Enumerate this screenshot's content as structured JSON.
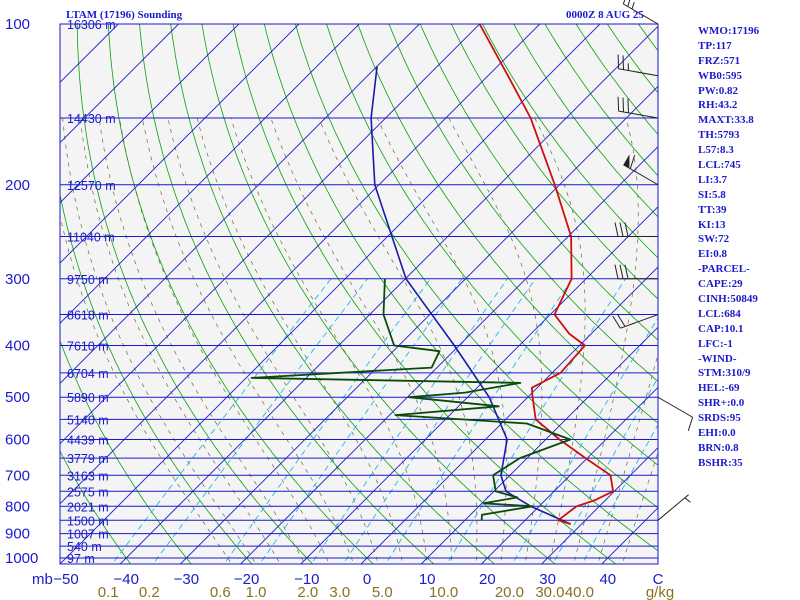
{
  "title": "LTAM (17196) Sounding",
  "time": "0000Z  8 AUG 25",
  "indices": [
    "WMO:17196",
    "TP:117",
    "FRZ:571",
    "WB0:595",
    "PW:0.82",
    "RH:43.2",
    "MAXT:33.8",
    "TH:5793",
    "L57:8.3",
    "LCL:745",
    "LI:3.7",
    "SI:5.8",
    "TT:39",
    "KI:13",
    "SW:72",
    "EI:0.8",
    "-PARCEL-",
    "CAPE:29",
    "CINH:50849",
    "LCL:684",
    "CAP:10.1",
    "LFC:-1",
    "-WIND-",
    "STM:310/9",
    "HEL:-69",
    "SHR+:0.0",
    "SRDS:95",
    "EHI:0.0",
    "BRN:0.8",
    "BSHR:35"
  ],
  "colors": {
    "background": "#f4f4f4",
    "isobar": "#1a1acc",
    "isotherm": "#1a1acc",
    "dry_adiabat": "#0aa00a",
    "moist_adiabat": "#6b6b3a",
    "mixing_ratio": "#28b4e6",
    "temperature": "#cc1010",
    "dewpoint": "#0a4a0a",
    "parcel": "#1a1aaa",
    "wind": "#222222",
    "labels": "#1a1acc",
    "mixing_ratio_labels": "#8a7020"
  },
  "chart_data": {
    "type": "skew-t",
    "pressure_levels": [
      {
        "p": 100,
        "label": "100",
        "height": "16306 m"
      },
      {
        "p": 150,
        "label": "",
        "height": "14430 m"
      },
      {
        "p": 200,
        "label": "200",
        "height": "12570 m"
      },
      {
        "p": 250,
        "label": "",
        "height": "11040 m"
      },
      {
        "p": 300,
        "label": "300",
        "height": "9750 m"
      },
      {
        "p": 350,
        "label": "",
        "height": "8618 m"
      },
      {
        "p": 400,
        "label": "400",
        "height": "7610 m"
      },
      {
        "p": 450,
        "label": "",
        "height": "6704 m"
      },
      {
        "p": 500,
        "label": "500",
        "height": "5890 m"
      },
      {
        "p": 550,
        "label": "",
        "height": "5140 m"
      },
      {
        "p": 600,
        "label": "600",
        "height": "4439 m"
      },
      {
        "p": 650,
        "label": "",
        "height": "3779 m"
      },
      {
        "p": 700,
        "label": "700",
        "height": "3163 m"
      },
      {
        "p": 750,
        "label": "",
        "height": "2575 m"
      },
      {
        "p": 800,
        "label": "800",
        "height": "2021 m"
      },
      {
        "p": 850,
        "label": "",
        "height": "1500 m"
      },
      {
        "p": 900,
        "label": "900",
        "height": "1007 m"
      },
      {
        "p": 950,
        "label": "",
        "height": "540 m"
      },
      {
        "p": 1000,
        "label": "1000",
        "height": "97 m"
      }
    ],
    "pressure_unit": "mb",
    "temperature_ticks": [
      -50,
      -40,
      -30,
      -20,
      -10,
      0,
      10,
      20,
      30,
      40
    ],
    "temperature_unit": "C",
    "mixing_ratio_labels": [
      "0.1",
      "0.2",
      "0.6",
      "1.0",
      "2.0",
      "3.0",
      "5.0",
      "10.0",
      "20.0",
      "30.0",
      "40.0"
    ],
    "mixing_ratio_unit": "g/kg",
    "temperature_profile": [
      [
        864,
        28.2
      ],
      [
        850,
        25.5
      ],
      [
        800,
        26.2
      ],
      [
        780,
        28.2
      ],
      [
        750,
        29.8
      ],
      [
        700,
        26.7
      ],
      [
        650,
        19.7
      ],
      [
        600,
        12.3
      ],
      [
        550,
        5.0
      ],
      [
        500,
        0.8
      ],
      [
        480,
        -0.9
      ],
      [
        450,
        1.4
      ],
      [
        400,
        0.9
      ],
      [
        380,
        -3.7
      ],
      [
        350,
        -9.3
      ],
      [
        300,
        -12.4
      ],
      [
        250,
        -19.5
      ],
      [
        200,
        -30.8
      ],
      [
        150,
        -45.9
      ],
      [
        125,
        -56.7
      ],
      [
        100,
        -70.0
      ]
    ],
    "dewpoint_profile": [
      [
        850,
        12.8
      ],
      [
        830,
        11.9
      ],
      [
        800,
        18.9
      ],
      [
        790,
        10.3
      ],
      [
        770,
        14.9
      ],
      [
        750,
        10.3
      ],
      [
        700,
        7.2
      ],
      [
        650,
        8.8
      ],
      [
        600,
        14.1
      ],
      [
        560,
        4.2
      ],
      [
        540,
        -19.0
      ],
      [
        520,
        -3.3
      ],
      [
        500,
        -19.7
      ],
      [
        490,
        -11.2
      ],
      [
        470,
        -3.6
      ],
      [
        460,
        -49.1
      ],
      [
        440,
        -20.9
      ],
      [
        410,
        -22.3
      ],
      [
        400,
        -30.8
      ],
      [
        350,
        -37.7
      ],
      [
        300,
        -43.4
      ]
    ],
    "parcel_profile": [
      [
        864,
        28.2
      ],
      [
        800,
        18.6
      ],
      [
        750,
        12.0
      ],
      [
        700,
        8.5
      ],
      [
        600,
        3.6
      ],
      [
        500,
        -6.4
      ],
      [
        400,
        -20.8
      ],
      [
        300,
        -39.9
      ],
      [
        200,
        -60.7
      ],
      [
        150,
        -72.4
      ],
      [
        120,
        -80.0
      ]
    ],
    "wind_barbs": [
      {
        "p": 100,
        "dir": 300,
        "speed_kt": 25
      },
      {
        "p": 125,
        "dir": 280,
        "speed_kt": 25
      },
      {
        "p": 150,
        "dir": 280,
        "speed_kt": 30
      },
      {
        "p": 200,
        "dir": 300,
        "speed_kt": 60
      },
      {
        "p": 250,
        "dir": 270,
        "speed_kt": 30
      },
      {
        "p": 300,
        "dir": 270,
        "speed_kt": 30
      },
      {
        "p": 350,
        "dir": 250,
        "speed_kt": 20
      },
      {
        "p": 500,
        "dir": 120,
        "speed_kt": 10
      },
      {
        "p": 850,
        "dir": 50,
        "speed_kt": 5
      }
    ]
  }
}
